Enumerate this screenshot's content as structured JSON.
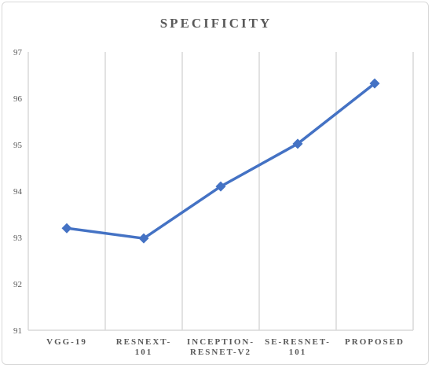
{
  "chart_data": {
    "type": "line",
    "title": "SPECIFICITY",
    "xlabel": "",
    "ylabel": "",
    "categories": [
      [
        "VGG-19"
      ],
      [
        "RESNEXT-",
        "101"
      ],
      [
        "INCEPTION-",
        "RESNET-V2"
      ],
      [
        "SE-RESNET-",
        "101"
      ],
      [
        "PROPOSED"
      ]
    ],
    "series": [
      {
        "values": [
          93.2,
          92.98,
          94.1,
          95.02,
          96.32
        ],
        "color": "#4472c4",
        "marker": "diamond"
      }
    ],
    "ylim": [
      91,
      97
    ],
    "yticks": [
      91,
      92,
      93,
      94,
      95,
      96,
      97
    ],
    "grid": "vertical",
    "legend": "none",
    "colors": {
      "gridline": "#d9d9d9",
      "text": "#595959"
    }
  }
}
